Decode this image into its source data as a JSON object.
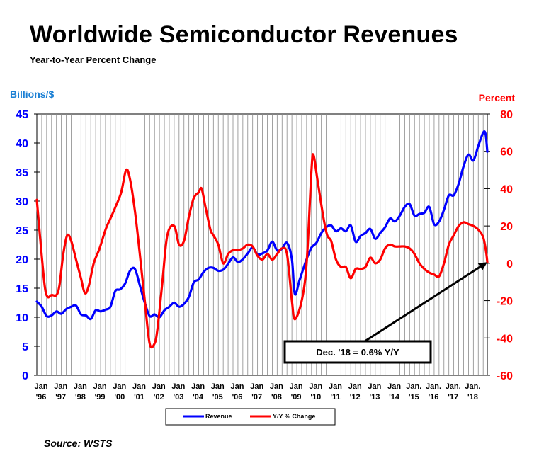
{
  "title": "Worldwide Semiconductor Revenues",
  "subtitle": "Year-to-Year Percent Change",
  "source": "Source: WSTS",
  "chart_data": {
    "type": "line",
    "y_left_label": "Billions/$",
    "y_right_label": "Percent",
    "y_left_range": [
      0,
      45
    ],
    "y_right_range": [
      -60,
      80
    ],
    "y_left_ticks": [
      "0",
      "5",
      "10",
      "15",
      "20",
      "25",
      "30",
      "35",
      "40",
      "45"
    ],
    "y_right_ticks": [
      "-60",
      "-40",
      "-20",
      "0",
      "20",
      "40",
      "60",
      "80"
    ],
    "x_range": [
      1996.0,
      2018.96
    ],
    "x_tick_labels": [
      [
        "Jan",
        "'96"
      ],
      [
        "Jan",
        "'97"
      ],
      [
        "Jan",
        "'98"
      ],
      [
        "Jan",
        "'99"
      ],
      [
        "Jan",
        "'00"
      ],
      [
        "Jan",
        "'01"
      ],
      [
        "Jan",
        "'02"
      ],
      [
        "Jan",
        "'03"
      ],
      [
        "Jan",
        "'04"
      ],
      [
        "Jan",
        "'05"
      ],
      [
        "Jan",
        "'06"
      ],
      [
        "Jan",
        "'07"
      ],
      [
        "Jan",
        "'08"
      ],
      [
        "Jan",
        "'09"
      ],
      [
        "Jan",
        "'10"
      ],
      [
        "Jan",
        "'11"
      ],
      [
        "Jan",
        "'12"
      ],
      [
        "Jan",
        "'13"
      ],
      [
        "Jan",
        "'14"
      ],
      [
        "Jan.",
        "'15"
      ],
      [
        "Jan.",
        "'16"
      ],
      [
        "Jan.",
        "'17"
      ],
      [
        "Jan.",
        "'18"
      ]
    ],
    "grid": "vertical",
    "legend_position": "bottom-center",
    "series": [
      {
        "name": "Revenue",
        "axis": "left",
        "color": "#0000ff",
        "points": [
          [
            1996.0,
            12.7
          ],
          [
            1996.25,
            11.8
          ],
          [
            1996.5,
            10.2
          ],
          [
            1996.75,
            10.3
          ],
          [
            1997.0,
            11.0
          ],
          [
            1997.25,
            10.6
          ],
          [
            1997.5,
            11.4
          ],
          [
            1997.75,
            11.8
          ],
          [
            1998.0,
            12.0
          ],
          [
            1998.25,
            10.5
          ],
          [
            1998.5,
            10.3
          ],
          [
            1998.75,
            9.7
          ],
          [
            1999.0,
            11.2
          ],
          [
            1999.25,
            11.0
          ],
          [
            1999.5,
            11.3
          ],
          [
            1999.75,
            11.8
          ],
          [
            2000.0,
            14.5
          ],
          [
            2000.25,
            14.8
          ],
          [
            2000.5,
            15.8
          ],
          [
            2000.75,
            18.0
          ],
          [
            2001.0,
            18.3
          ],
          [
            2001.25,
            15.5
          ],
          [
            2001.5,
            12.5
          ],
          [
            2001.75,
            10.2
          ],
          [
            2002.0,
            10.5
          ],
          [
            2002.25,
            10.0
          ],
          [
            2002.5,
            11.2
          ],
          [
            2002.75,
            11.8
          ],
          [
            2003.0,
            12.5
          ],
          [
            2003.25,
            11.8
          ],
          [
            2003.5,
            12.3
          ],
          [
            2003.75,
            13.5
          ],
          [
            2004.0,
            16.0
          ],
          [
            2004.25,
            16.5
          ],
          [
            2004.5,
            17.8
          ],
          [
            2004.75,
            18.5
          ],
          [
            2005.0,
            18.5
          ],
          [
            2005.25,
            18.0
          ],
          [
            2005.5,
            18.2
          ],
          [
            2005.75,
            19.2
          ],
          [
            2006.0,
            20.3
          ],
          [
            2006.25,
            19.5
          ],
          [
            2006.5,
            20.0
          ],
          [
            2006.75,
            21.0
          ],
          [
            2007.0,
            22.0
          ],
          [
            2007.25,
            20.8
          ],
          [
            2007.5,
            21.0
          ],
          [
            2007.75,
            21.5
          ],
          [
            2008.0,
            23.0
          ],
          [
            2008.25,
            21.5
          ],
          [
            2008.5,
            21.8
          ],
          [
            2008.75,
            22.8
          ],
          [
            2009.0,
            20.0
          ],
          [
            2009.15,
            14.0
          ],
          [
            2009.4,
            16.5
          ],
          [
            2009.75,
            20.0
          ],
          [
            2010.0,
            22.0
          ],
          [
            2010.25,
            22.8
          ],
          [
            2010.5,
            24.5
          ],
          [
            2010.75,
            25.5
          ],
          [
            2011.0,
            25.8
          ],
          [
            2011.25,
            24.8
          ],
          [
            2011.5,
            25.3
          ],
          [
            2011.75,
            24.8
          ],
          [
            2012.0,
            25.8
          ],
          [
            2012.25,
            23.0
          ],
          [
            2012.5,
            24.0
          ],
          [
            2012.75,
            24.5
          ],
          [
            2013.0,
            25.2
          ],
          [
            2013.25,
            23.5
          ],
          [
            2013.5,
            24.5
          ],
          [
            2013.75,
            25.5
          ],
          [
            2014.0,
            27.0
          ],
          [
            2014.25,
            26.5
          ],
          [
            2014.5,
            27.5
          ],
          [
            2014.75,
            29.0
          ],
          [
            2015.0,
            29.5
          ],
          [
            2015.25,
            27.5
          ],
          [
            2015.5,
            27.8
          ],
          [
            2015.75,
            28.0
          ],
          [
            2016.0,
            29.0
          ],
          [
            2016.25,
            26.0
          ],
          [
            2016.5,
            26.5
          ],
          [
            2016.75,
            28.5
          ],
          [
            2017.0,
            31.0
          ],
          [
            2017.25,
            31.0
          ],
          [
            2017.5,
            33.0
          ],
          [
            2017.75,
            36.0
          ],
          [
            2018.0,
            38.0
          ],
          [
            2018.25,
            37.0
          ],
          [
            2018.5,
            39.5
          ],
          [
            2018.75,
            41.8
          ],
          [
            2018.875,
            41.5
          ],
          [
            2018.96,
            38.5
          ]
        ]
      },
      {
        "name": "Y/Y % Change",
        "axis": "right",
        "color": "#ff0000",
        "points": [
          [
            1996.0,
            34
          ],
          [
            1996.2,
            10
          ],
          [
            1996.4,
            -12
          ],
          [
            1996.55,
            -18
          ],
          [
            1996.75,
            -17
          ],
          [
            1997.0,
            -17
          ],
          [
            1997.15,
            -12
          ],
          [
            1997.35,
            5
          ],
          [
            1997.55,
            15
          ],
          [
            1997.75,
            12
          ],
          [
            1998.0,
            2
          ],
          [
            1998.25,
            -8
          ],
          [
            1998.45,
            -16
          ],
          [
            1998.65,
            -12
          ],
          [
            1998.9,
            0
          ],
          [
            1999.2,
            8
          ],
          [
            1999.5,
            18
          ],
          [
            1999.75,
            24
          ],
          [
            2000.0,
            30
          ],
          [
            2000.3,
            38
          ],
          [
            2000.55,
            50
          ],
          [
            2000.75,
            45
          ],
          [
            2001.0,
            28
          ],
          [
            2001.25,
            5
          ],
          [
            2001.5,
            -20
          ],
          [
            2001.75,
            -43
          ],
          [
            2002.0,
            -43
          ],
          [
            2002.15,
            -35
          ],
          [
            2002.4,
            -10
          ],
          [
            2002.65,
            15
          ],
          [
            2003.0,
            20
          ],
          [
            2003.25,
            10
          ],
          [
            2003.5,
            12
          ],
          [
            2003.75,
            25
          ],
          [
            2004.0,
            35
          ],
          [
            2004.25,
            38
          ],
          [
            2004.4,
            40
          ],
          [
            2004.6,
            30
          ],
          [
            2004.85,
            18
          ],
          [
            2005.0,
            15
          ],
          [
            2005.25,
            10
          ],
          [
            2005.5,
            0
          ],
          [
            2005.75,
            5
          ],
          [
            2006.0,
            7
          ],
          [
            2006.25,
            7
          ],
          [
            2006.5,
            8
          ],
          [
            2006.75,
            10
          ],
          [
            2007.0,
            9
          ],
          [
            2007.25,
            4
          ],
          [
            2007.5,
            2
          ],
          [
            2007.75,
            5
          ],
          [
            2008.0,
            2
          ],
          [
            2008.25,
            5
          ],
          [
            2008.5,
            8
          ],
          [
            2008.75,
            5
          ],
          [
            2009.0,
            -20
          ],
          [
            2009.15,
            -30
          ],
          [
            2009.5,
            -20
          ],
          [
            2009.75,
            0
          ],
          [
            2010.0,
            50
          ],
          [
            2010.1,
            58
          ],
          [
            2010.3,
            45
          ],
          [
            2010.6,
            25
          ],
          [
            2010.8,
            15
          ],
          [
            2011.0,
            12
          ],
          [
            2011.25,
            2
          ],
          [
            2011.5,
            -2
          ],
          [
            2011.75,
            -2
          ],
          [
            2012.0,
            -8
          ],
          [
            2012.25,
            -3
          ],
          [
            2012.5,
            -3
          ],
          [
            2012.75,
            -2
          ],
          [
            2013.0,
            3
          ],
          [
            2013.25,
            0
          ],
          [
            2013.5,
            2
          ],
          [
            2013.75,
            8
          ],
          [
            2014.0,
            10
          ],
          [
            2014.25,
            9
          ],
          [
            2014.5,
            9
          ],
          [
            2014.75,
            9
          ],
          [
            2015.0,
            8
          ],
          [
            2015.25,
            5
          ],
          [
            2015.5,
            0
          ],
          [
            2015.75,
            -3
          ],
          [
            2016.0,
            -5
          ],
          [
            2016.25,
            -6
          ],
          [
            2016.5,
            -7
          ],
          [
            2016.75,
            0
          ],
          [
            2017.0,
            10
          ],
          [
            2017.25,
            15
          ],
          [
            2017.5,
            20
          ],
          [
            2017.75,
            22
          ],
          [
            2018.0,
            21
          ],
          [
            2018.25,
            20
          ],
          [
            2018.5,
            18
          ],
          [
            2018.75,
            14
          ],
          [
            2018.9,
            6
          ],
          [
            2018.96,
            0.6
          ]
        ]
      }
    ],
    "annotation": {
      "text": "Dec. '18 = 0.6% Y/Y",
      "x": 2018.96,
      "y": 0.6,
      "axis": "right"
    }
  }
}
